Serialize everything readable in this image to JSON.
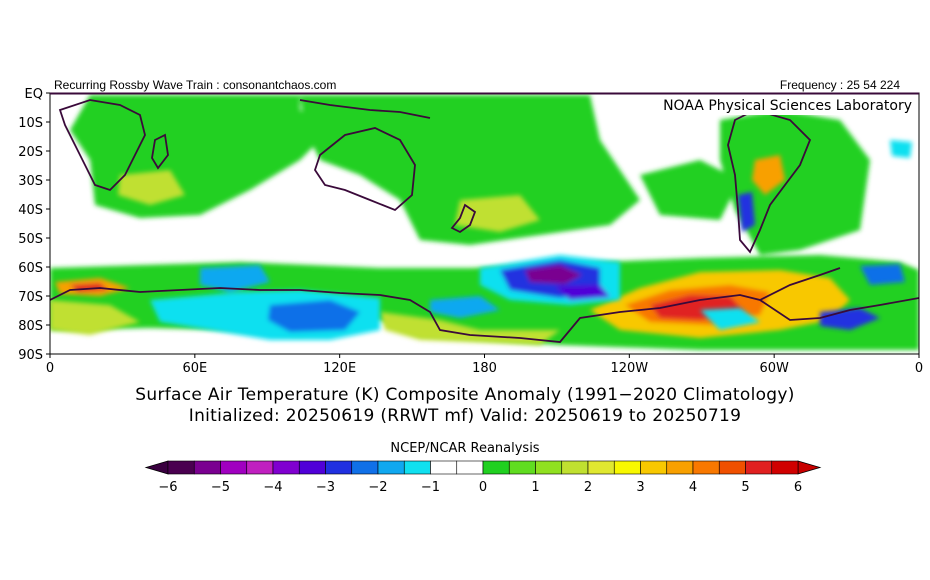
{
  "header": {
    "left_text": "Recurring Rossby Wave Train : consonantchaos.com",
    "right_text": "Frequency : 25 54 224"
  },
  "map": {
    "credit": "NOAA Physical Sciences Laboratory",
    "lat_labels": [
      "EQ",
      "10S",
      "20S",
      "30S",
      "40S",
      "50S",
      "60S",
      "70S",
      "80S",
      "90S"
    ],
    "lon_labels": [
      "0",
      "60E",
      "120E",
      "180",
      "120W",
      "60W",
      "0"
    ],
    "background_color": "#ffffff",
    "coast_color": "#3a0a3a"
  },
  "titles": {
    "line1": "Surface Air Temperature (K) Composite Anomaly (1991−2020 Climatology)",
    "line2": "Initialized: 20250619 (RRWT mf) Valid: 20250619 to 20250719"
  },
  "colorbar": {
    "caption": "NCEP/NCAR Reanalysis",
    "tick_labels": [
      "−6",
      "−5",
      "−4",
      "−3",
      "−2",
      "−1",
      "0",
      "1",
      "2",
      "3",
      "4",
      "5",
      "6"
    ],
    "colors": [
      "#4a0050",
      "#7a0090",
      "#a000c0",
      "#c020c0",
      "#8000d0",
      "#5000d8",
      "#2030e0",
      "#1070e8",
      "#10a8f0",
      "#10e0f0",
      "#ffffff",
      "#ffffff",
      "#20d020",
      "#60dc20",
      "#90e020",
      "#c0e030",
      "#e0e830",
      "#f8f800",
      "#f8c800",
      "#f8a000",
      "#f87800",
      "#f05000",
      "#e02020",
      "#d00000"
    ],
    "under_color": "#3a0040",
    "over_color": "#c80000"
  }
}
